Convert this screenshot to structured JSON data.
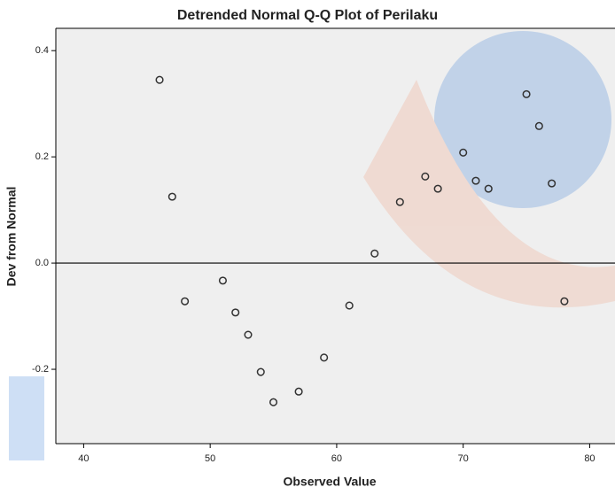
{
  "chart_data": {
    "type": "scatter",
    "title": "Detrended Normal Q-Q Plot of Perilaku",
    "x_label": "Observed Value",
    "y_label": "Dev from Normal",
    "x": [
      46,
      47,
      48,
      51,
      52,
      53,
      54,
      55,
      57,
      59,
      61,
      63,
      65,
      67,
      68,
      70,
      71,
      72,
      75,
      76,
      77,
      78
    ],
    "values": [
      0.345,
      0.125,
      -0.072,
      -0.033,
      -0.093,
      -0.135,
      -0.205,
      -0.262,
      -0.242,
      -0.178,
      -0.08,
      0.018,
      0.115,
      0.163,
      0.14,
      0.208,
      0.155,
      0.14,
      0.318,
      0.258,
      0.15,
      -0.072
    ],
    "color": "#333333",
    "xlim": [
      37.8,
      82
    ],
    "xticks": [
      40,
      50,
      60,
      70,
      80
    ],
    "ylim": [
      -0.34,
      0.442
    ],
    "yticks": [
      {
        "value": 0.4,
        "label": "0.4"
      },
      {
        "value": 0.2,
        "label": "0.2"
      },
      {
        "value": 0,
        "label": "0.0"
      },
      {
        "value": -0.2,
        "label": "-0.2"
      }
    ]
  }
}
